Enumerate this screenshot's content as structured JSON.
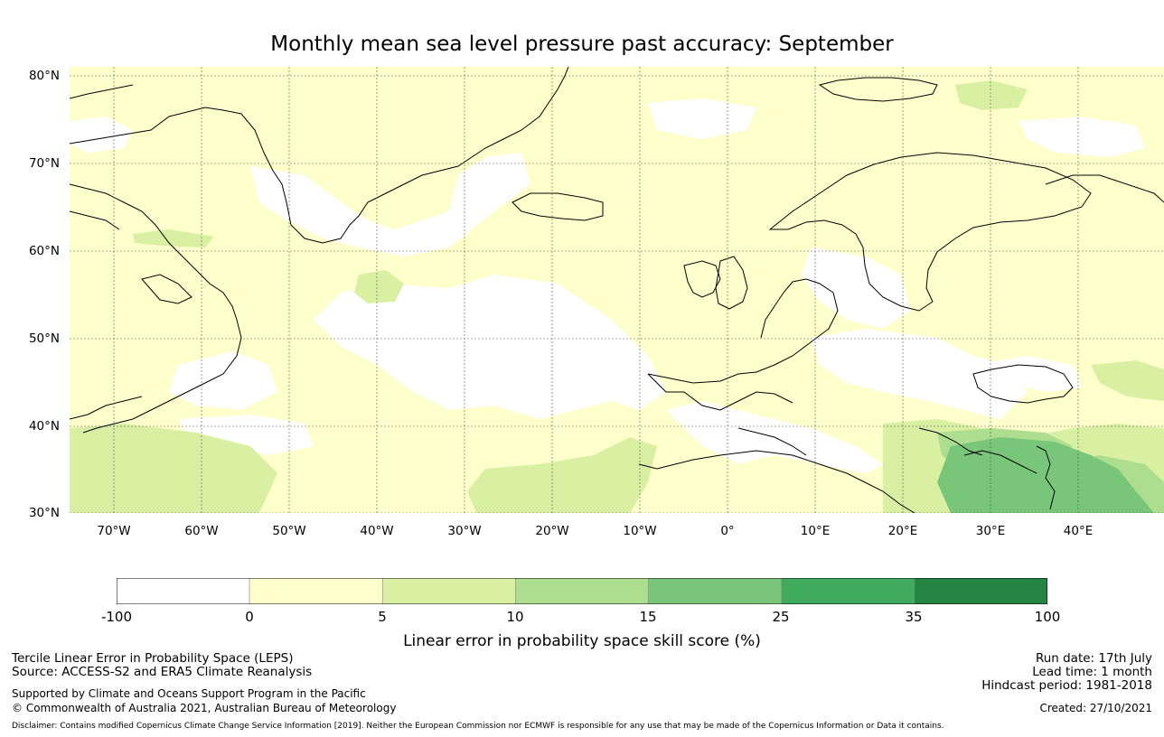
{
  "title": "Monthly mean sea level pressure past accuracy: September",
  "map": {
    "lat_labels": [
      "80°N",
      "70°N",
      "60°N",
      "50°N",
      "40°N",
      "30°N"
    ],
    "lon_labels": [
      "70°W",
      "60°W",
      "50°W",
      "40°W",
      "30°W",
      "20°W",
      "10°W",
      "0°",
      "10°E",
      "20°E",
      "30°E",
      "40°E"
    ],
    "colors": {
      "ocean_dominant": "#ffffcc",
      "no_skill": "#ffffff",
      "low_skill": "#d9f0a3",
      "mid_skill": "#addd8e",
      "high_skill": "#78c679",
      "coastline": "#000000"
    }
  },
  "colorbar": {
    "ticks": [
      "-100",
      "0",
      "5",
      "10",
      "15",
      "25",
      "35",
      "100"
    ],
    "colors": [
      "#ffffff",
      "#ffffcc",
      "#d9f0a3",
      "#addd8e",
      "#78c679",
      "#41ab5d",
      "#238443"
    ],
    "label": "Linear error in probability space skill score (%)"
  },
  "footer": {
    "line1": "Tercile Linear Error in Probability Space (LEPS)",
    "line2": "Source: ACCESS-S2 and ERA5 Climate Reanalysis",
    "line3": "Supported by Climate and Oceans Support Program in the Pacific",
    "line4": "© Commonwealth of Australia 2021, Australian Bureau of Meteorology",
    "run_date": "Run date: 17th July",
    "lead_time": "Lead time: 1 month",
    "hindcast": "Hindcast period: 1981-2018",
    "created": "Created: 27/10/2021",
    "disclaimer": "Disclaimer: Contains modified Copernicus Climate Change Service Information [2019]. Neither the European Commission nor ECMWF is responsible for any use that may be made of the Copernicus Information or Data it contains."
  }
}
